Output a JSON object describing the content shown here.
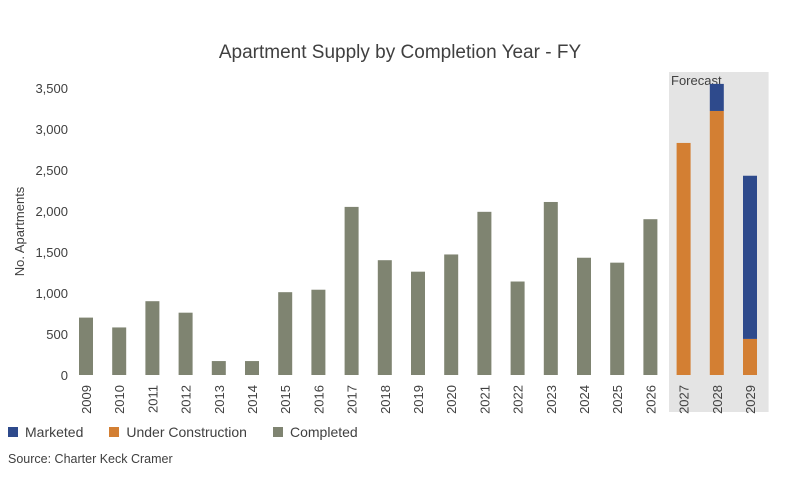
{
  "chart_data": {
    "type": "bar",
    "stacked": true,
    "title": "Apartment Supply by Completion Year - FY",
    "xlabel": "",
    "ylabel": "No. Apartments",
    "ylim": [
      0,
      3500
    ],
    "yticks": [
      0,
      500,
      1000,
      1500,
      2000,
      2500,
      3000,
      3500
    ],
    "ytick_labels": [
      "0",
      "500",
      "1,000",
      "1,500",
      "2,000",
      "2,500",
      "3,000",
      "3,500"
    ],
    "categories": [
      "2009",
      "2010",
      "2011",
      "2012",
      "2013",
      "2014",
      "2015",
      "2016",
      "2017",
      "2018",
      "2019",
      "2020",
      "2021",
      "2022",
      "2023",
      "2024",
      "2025",
      "2026",
      "2027",
      "2028",
      "2029"
    ],
    "series": [
      {
        "name": "Completed",
        "color": "#7f8471",
        "values": [
          700,
          580,
          900,
          760,
          170,
          170,
          1010,
          1040,
          2050,
          1400,
          1260,
          1470,
          1990,
          1140,
          2110,
          1430,
          1370,
          1900,
          0,
          0,
          0
        ]
      },
      {
        "name": "Under Construction",
        "color": "#d37f33",
        "values": [
          0,
          0,
          0,
          0,
          0,
          0,
          0,
          0,
          0,
          0,
          0,
          0,
          0,
          0,
          0,
          0,
          0,
          0,
          2830,
          3220,
          440
        ]
      },
      {
        "name": "Marketed",
        "color": "#2e4a8c",
        "values": [
          0,
          0,
          0,
          0,
          0,
          0,
          0,
          0,
          0,
          0,
          0,
          0,
          0,
          0,
          0,
          0,
          0,
          0,
          0,
          330,
          1990
        ]
      }
    ],
    "forecast_label": "Forecast",
    "forecast_categories": [
      "2027",
      "2028",
      "2029"
    ],
    "grid": false,
    "legend_position": "bottom-left",
    "legend_order": [
      "Marketed",
      "Under Construction",
      "Completed"
    ]
  },
  "source": "Source: Charter Keck Cramer"
}
